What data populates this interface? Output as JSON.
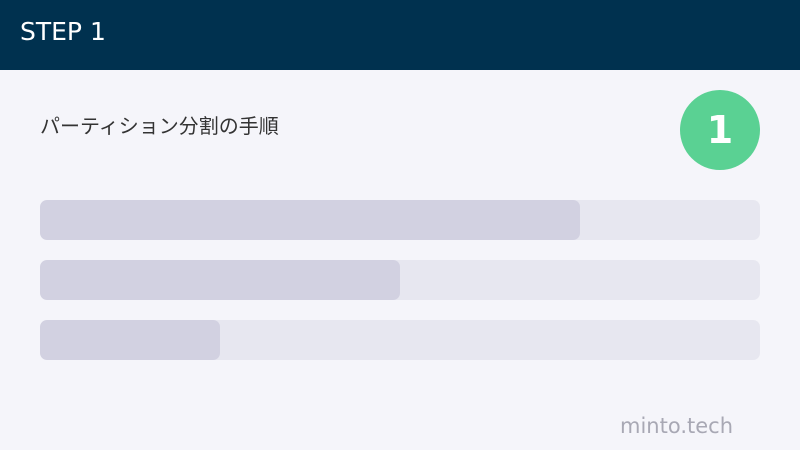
{
  "header": {
    "title": "STEP 1"
  },
  "subtitle": "パーティション分割の手順",
  "badge": {
    "number": "1",
    "color": "#5ad193"
  },
  "progress_bars": [
    {
      "percent": 75
    },
    {
      "percent": 50
    },
    {
      "percent": 25
    }
  ],
  "brand": "minto.tech",
  "colors": {
    "header": "#00314f",
    "bar_track": "#e7e7f0",
    "bar_fill": "#d2d1e1"
  }
}
